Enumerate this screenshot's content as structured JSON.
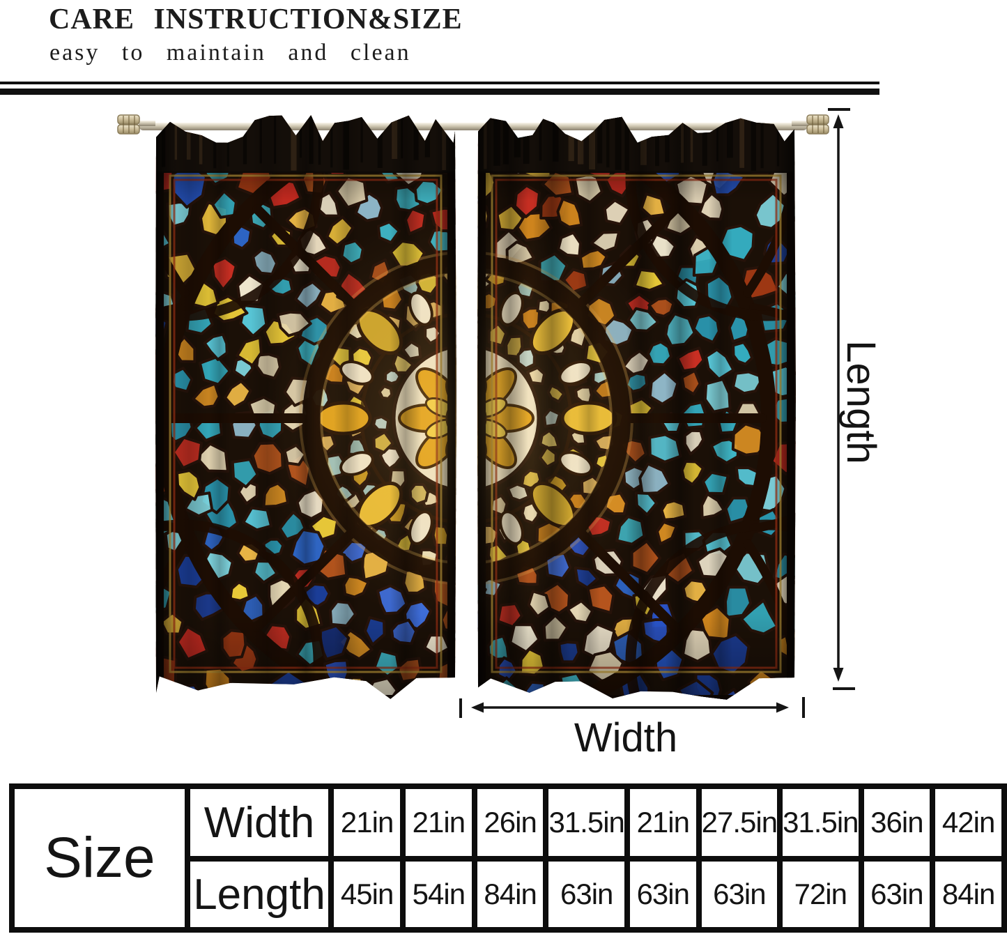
{
  "header": {
    "title": "CARE INSTRUCTION&SIZE",
    "subtitle": "easy to maintain and clean"
  },
  "diagram": {
    "length_label": "Length",
    "width_label": "Width"
  },
  "size_table": {
    "corner_label": "Size",
    "rows": [
      {
        "label": "Width",
        "values": [
          "21in",
          "21in",
          "26in",
          "31.5in",
          "21in",
          "27.5in",
          "31.5in",
          "36in",
          "42in"
        ]
      },
      {
        "label": "Length",
        "values": [
          "45in",
          "54in",
          "84in",
          "63in",
          "63in",
          "63in",
          "72in",
          "63in",
          "84in"
        ]
      }
    ]
  },
  "colors": {
    "text": "#141414",
    "table_corner_bg": "#c2c2c2",
    "table_border": "#0d0d0d",
    "divider": "#101010"
  },
  "artwork": {
    "lead": "#26130a",
    "tracery": "#1d0d03",
    "base": "#1b1007",
    "pocket": "#140e09",
    "gold_frame_line": "#c29b3a",
    "red_frame_line": "#9e3014",
    "palette": {
      "pale": [
        "#efe7d2",
        "#e9d9ae",
        "#e3c96a",
        "#d9b84a",
        "#c2d8d2",
        "#e8e2c8"
      ],
      "inner": [
        "#e7c93e",
        "#efe3bc",
        "#d9a527",
        "#c97f1c",
        "#e4b964",
        "#a9cdc6",
        "#eadbb0"
      ],
      "mid": [
        "#e8c838",
        "#f0e7cf",
        "#3fb6c6",
        "#d98f23",
        "#b5541d",
        "#e5d7b4",
        "#2e66c8",
        "#c92f23",
        "#e9b545",
        "#8fb8c9"
      ],
      "outer": [
        "#c42a20",
        "#2553c0",
        "#35aec2",
        "#d88b1f",
        "#eee1c4",
        "#a33a14",
        "#e2b83a",
        "#1b3e99",
        "#58c7d8"
      ],
      "corner": [
        "#2a55cc",
        "#36b3c8",
        "#c8331f",
        "#3f9a3a",
        "#e3c23a",
        "#7a4a1f",
        "#204a9e",
        "#58c7d8",
        "#a8b8bf",
        "#d87f1e"
      ],
      "teals": [
        "#35aec2",
        "#58c7d8",
        "#2a95ad",
        "#7fd4de"
      ],
      "blues": [
        "#2a55cc",
        "#1b3e99",
        "#3f6fe0",
        "#16307e"
      ],
      "warms": [
        "#c42a20",
        "#d88b1f",
        "#e2b83a",
        "#a33a14",
        "#eee1c4"
      ]
    }
  }
}
